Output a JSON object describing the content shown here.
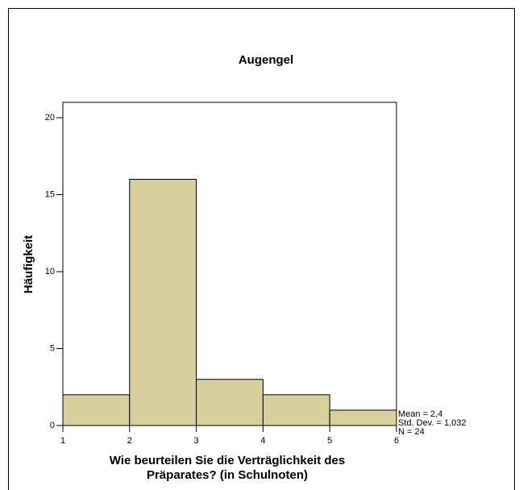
{
  "chart_data": {
    "type": "histogram",
    "title": "Augengel",
    "x_label": [
      "Wie beurteilen Sie die Verträglichkeit des",
      "Präparates? (in Schulnoten)"
    ],
    "y_label": "Häufigkeit",
    "bins": [
      1,
      2,
      3,
      4,
      5,
      6
    ],
    "values": [
      2,
      16,
      3,
      2,
      1
    ],
    "color": "#d6d19c",
    "xlim": [
      1,
      6
    ],
    "xticks": [
      1,
      2,
      3,
      4,
      5,
      6
    ],
    "ylim": [
      0,
      21
    ],
    "yticks": [
      0,
      5,
      10,
      15,
      20
    ],
    "annotations": [
      "Mean = 2,4",
      "Std. Dev. = 1,032",
      "N = 24"
    ]
  }
}
